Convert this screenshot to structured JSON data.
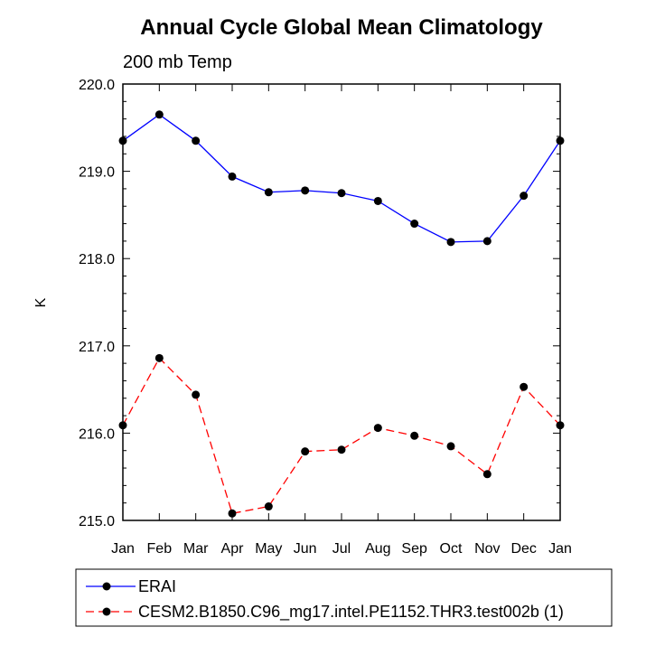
{
  "chart_data": {
    "type": "line",
    "title": "Annual Cycle Global Mean Climatology",
    "subtitle": "200 mb Temp",
    "xlabel": "",
    "ylabel": "K",
    "categories": [
      "Jan",
      "Feb",
      "Mar",
      "Apr",
      "May",
      "Jun",
      "Jul",
      "Aug",
      "Sep",
      "Oct",
      "Nov",
      "Dec",
      "Jan"
    ],
    "ylim": [
      215.0,
      220.0
    ],
    "yticks": [
      "215.0",
      "216.0",
      "217.0",
      "218.0",
      "219.0",
      "220.0"
    ],
    "grid": false,
    "legend_position": "bottom",
    "series": [
      {
        "name": "ERAI",
        "color": "#0000ff",
        "dash": "solid",
        "values": [
          219.35,
          219.65,
          219.35,
          218.94,
          218.76,
          218.78,
          218.75,
          218.66,
          218.4,
          218.19,
          218.2,
          218.72,
          219.35
        ]
      },
      {
        "name": "CESM2.B1850.C96_mg17.intel.PE1152.THR3.test002b (1)",
        "color": "#ff0000",
        "dash": "dashed",
        "values": [
          216.09,
          216.86,
          216.44,
          215.08,
          215.16,
          215.79,
          215.81,
          216.06,
          215.97,
          215.85,
          215.53,
          216.53,
          216.09
        ]
      }
    ]
  }
}
